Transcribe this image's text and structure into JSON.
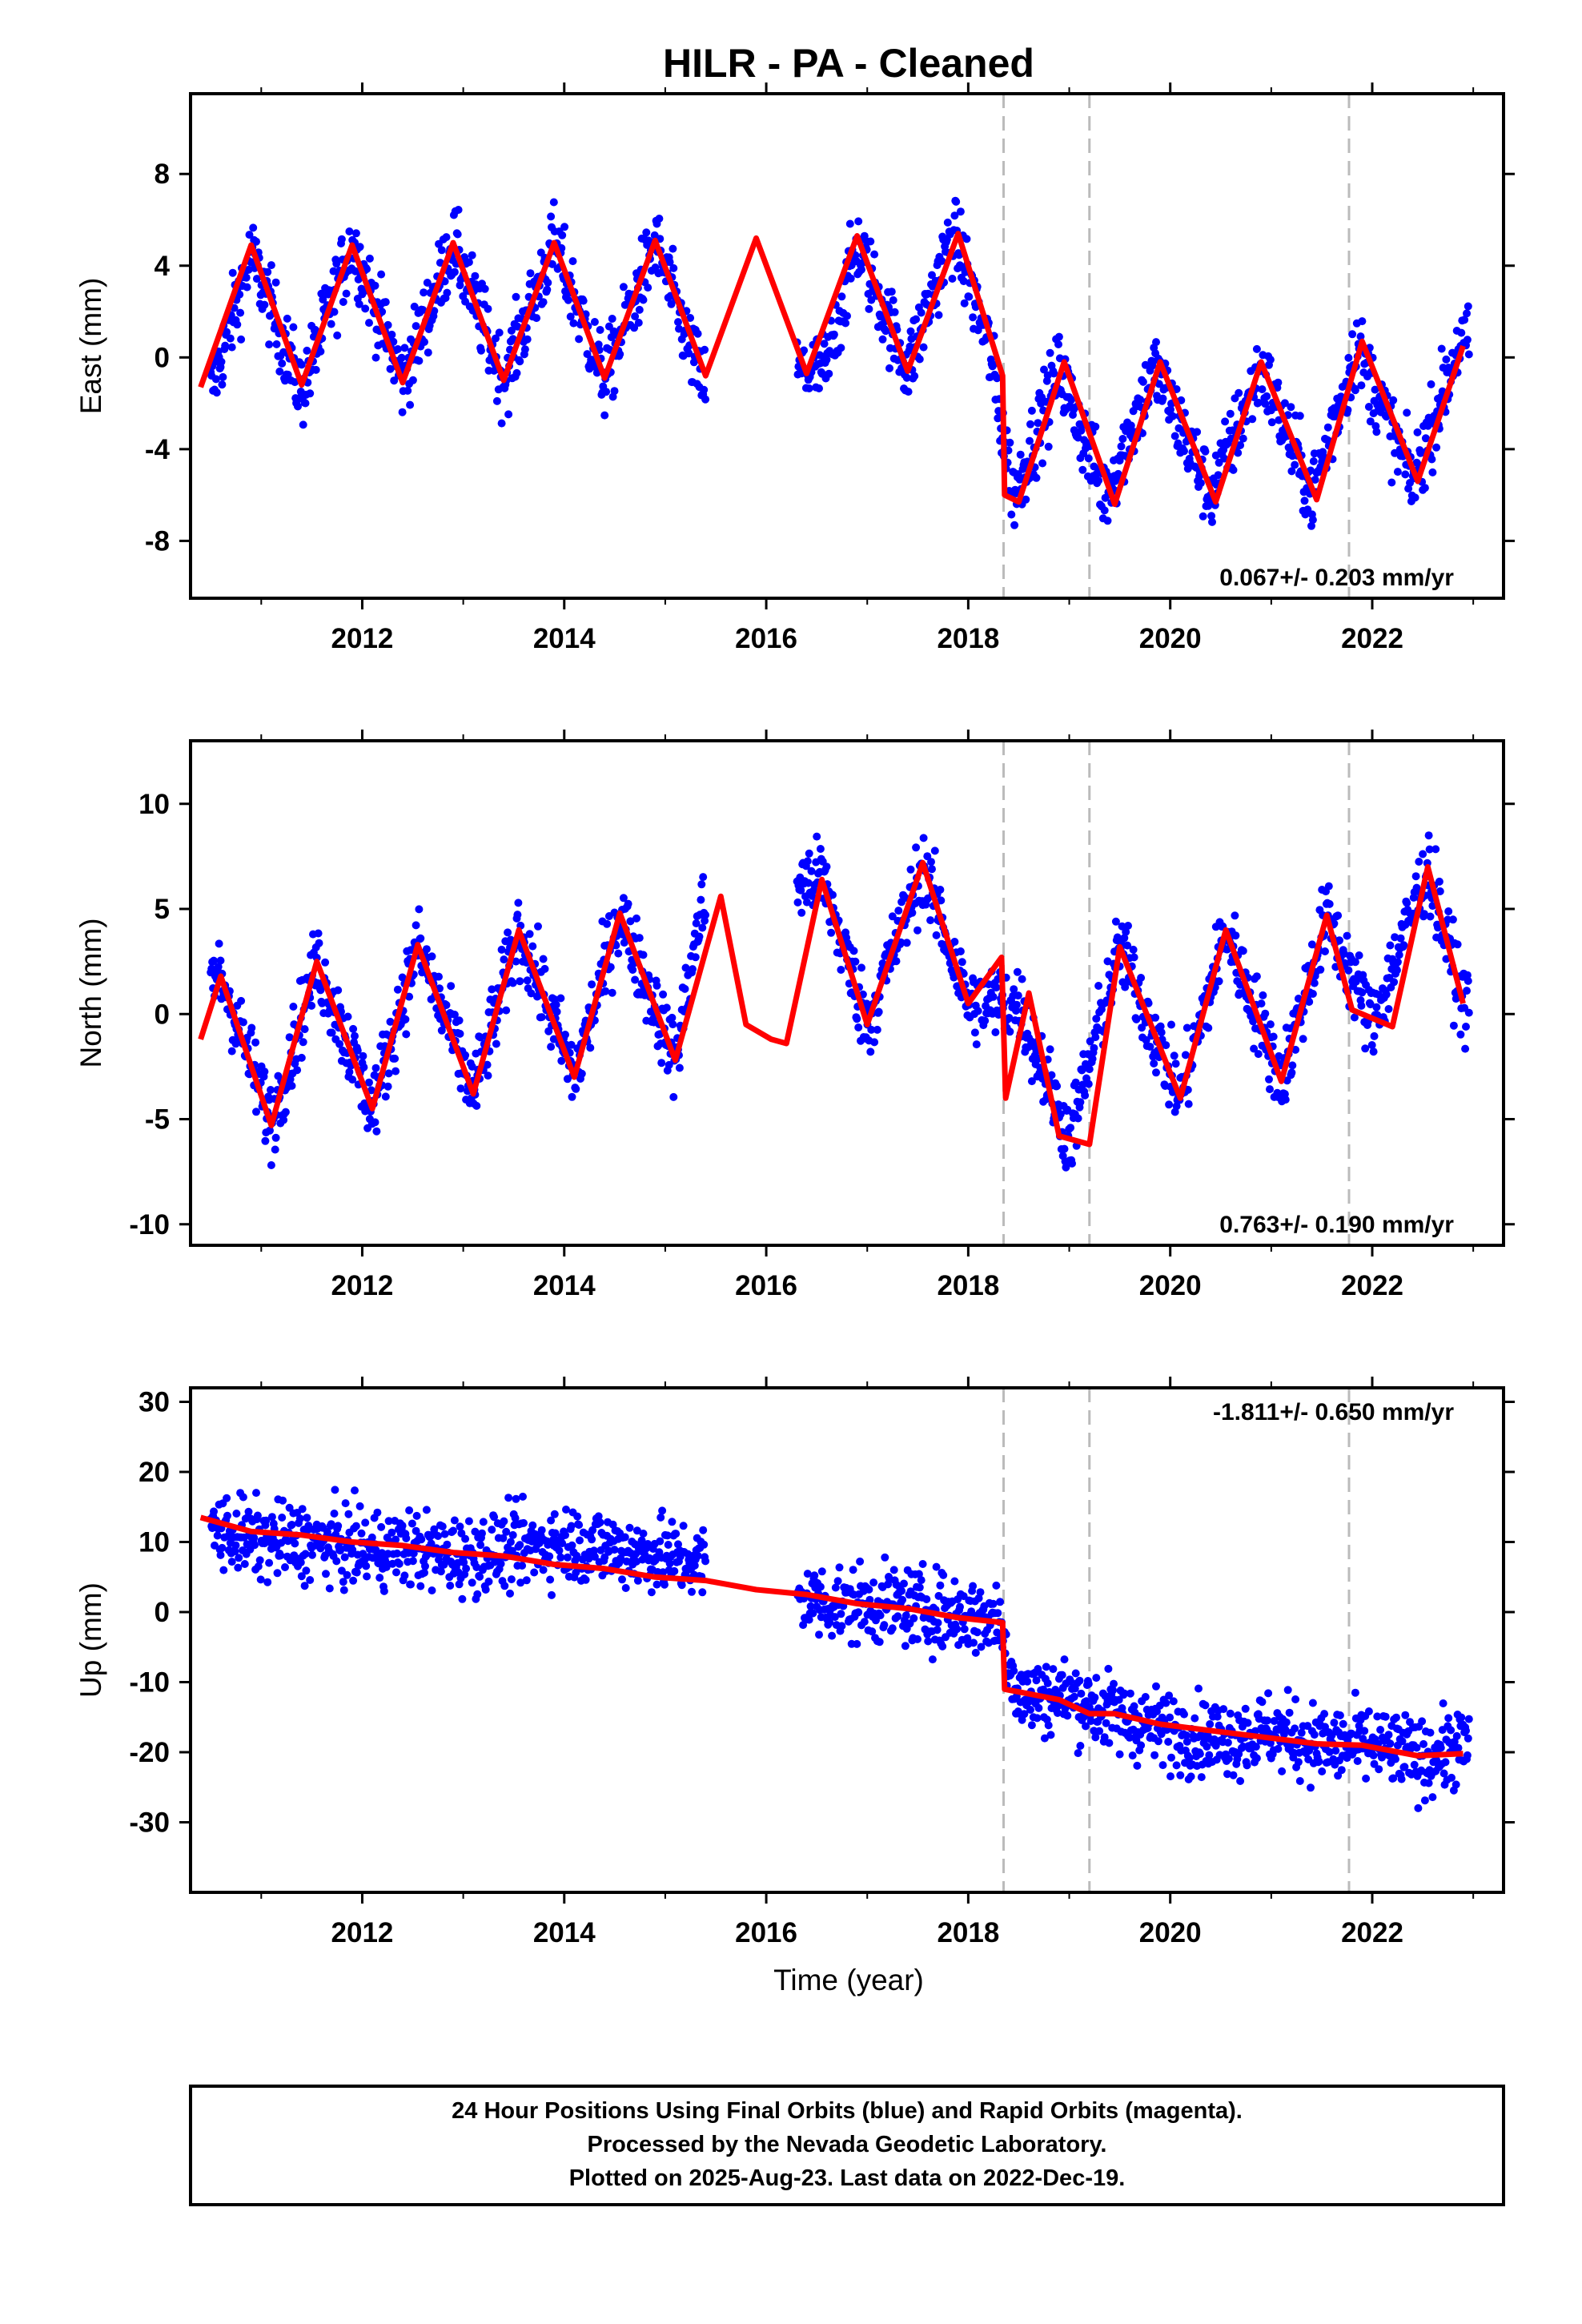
{
  "title": "HILR  - PA - Cleaned",
  "x_axis_label": "Time (year)",
  "colors": {
    "data": "#0000ff",
    "model": "#ff0000",
    "event": "#bbbbbb",
    "frame": "#000000"
  },
  "chart_data": [
    {
      "type": "scatter",
      "panel": "east",
      "ylabel": "East (mm)",
      "xlim": [
        2010.3,
        2023.3
      ],
      "ylim": [
        -10.5,
        11.5
      ],
      "x_ticks": [
        "2012",
        "2014",
        "2016",
        "2018",
        "2020",
        "2022"
      ],
      "y_ticks": [
        "-8",
        "-4",
        "0",
        "4",
        "8"
      ],
      "grid": false,
      "rate_label": "0.067+/- 0.203 mm/yr",
      "rate_position": "bottom-right",
      "event_lines": [
        2018.35,
        2019.2,
        2021.77
      ],
      "data_gap": [
        2015.4,
        2016.3
      ],
      "series": [
        {
          "name": "24 Hour Positions (Final Orbits)",
          "kind": "points",
          "style": "blue dots",
          "x": [
            2010.5,
            2010.9,
            2011.4,
            2011.9,
            2012.4,
            2012.9,
            2013.4,
            2013.9,
            2014.4,
            2014.9,
            2015.35,
            2016.6,
            2016.9,
            2017.4,
            2017.85,
            2018.2,
            2018.45,
            2018.9,
            2019.35,
            2019.85,
            2020.4,
            2020.9,
            2021.4,
            2021.85,
            2022.4,
            2022.85
          ],
          "y": [
            -1.5,
            4.5,
            -1.5,
            5.0,
            -1.0,
            5.0,
            -1.0,
            5.0,
            -1.0,
            5.0,
            -1.0,
            -0.5,
            5.0,
            -0.5,
            5.5,
            0.5,
            -6.0,
            -0.5,
            -6.0,
            -0.5,
            -6.0,
            -0.5,
            -6.0,
            0.5,
            -5.5,
            0.5
          ]
        },
        {
          "name": "Model fit",
          "kind": "line",
          "style": "red line",
          "x": [
            2010.4,
            2010.9,
            2011.4,
            2011.9,
            2012.4,
            2012.9,
            2013.4,
            2013.9,
            2014.4,
            2014.9,
            2015.4,
            2015.9,
            2016.4,
            2016.9,
            2017.4,
            2017.9,
            2018.34,
            2018.36,
            2018.5,
            2018.95,
            2019.45,
            2019.9,
            2020.45,
            2020.9,
            2021.45,
            2021.9,
            2022.45,
            2022.9
          ],
          "y": [
            -1.3,
            4.9,
            -1.2,
            4.9,
            -1.1,
            5.0,
            -1.0,
            5.0,
            -0.9,
            5.1,
            -0.8,
            5.2,
            -0.7,
            5.3,
            -0.6,
            5.4,
            -0.8,
            -6.0,
            -6.3,
            -0.2,
            -6.4,
            -0.2,
            -6.3,
            -0.2,
            -6.2,
            0.7,
            -5.4,
            0.5
          ]
        }
      ]
    },
    {
      "type": "scatter",
      "panel": "north",
      "ylabel": "North (mm)",
      "xlim": [
        2010.3,
        2023.3
      ],
      "ylim": [
        -11,
        13
      ],
      "x_ticks": [
        "2012",
        "2014",
        "2016",
        "2018",
        "2020",
        "2022"
      ],
      "y_ticks": [
        "-10",
        "-5",
        "0",
        "5",
        "10"
      ],
      "grid": false,
      "rate_label": "0.763+/- 0.190 mm/yr",
      "rate_position": "bottom-right",
      "event_lines": [
        2018.35,
        2019.2,
        2021.77
      ],
      "data_gap": [
        2015.4,
        2016.3
      ],
      "series": [
        {
          "name": "24 Hour Positions (Final Orbits)",
          "kind": "points",
          "style": "blue dots",
          "x": [
            2010.6,
            2011.1,
            2011.55,
            2012.1,
            2012.55,
            2013.1,
            2013.55,
            2014.1,
            2014.55,
            2015.1,
            2015.35,
            2016.55,
            2017.0,
            2017.55,
            2018.0,
            2018.5,
            2019.0,
            2019.5,
            2020.1,
            2020.55,
            2021.1,
            2021.55,
            2022.0,
            2022.55,
            2022.9
          ],
          "y": [
            1.8,
            -5.2,
            2.5,
            -4.5,
            3.3,
            -3.8,
            4.0,
            -3.0,
            4.8,
            -2.2,
            4.8,
            6.5,
            -0.5,
            7.0,
            0.5,
            0.5,
            -6.0,
            3.2,
            -4.0,
            4.0,
            -3.2,
            4.7,
            -0.5,
            7.0,
            0.5
          ]
        },
        {
          "name": "Model fit",
          "kind": "line",
          "style": "red line",
          "x": [
            2010.4,
            2010.6,
            2011.1,
            2011.55,
            2012.1,
            2012.55,
            2013.1,
            2013.55,
            2014.1,
            2014.55,
            2015.1,
            2015.55,
            2015.8,
            2016.05,
            2016.2,
            2016.55,
            2017.0,
            2017.55,
            2018.0,
            2018.33,
            2018.37,
            2018.6,
            2018.9,
            2019.2,
            2019.5,
            2020.1,
            2020.55,
            2021.1,
            2021.55,
            2021.8,
            2022.2,
            2022.55,
            2022.9
          ],
          "y": [
            -1.2,
            1.8,
            -5.3,
            2.5,
            -4.5,
            3.3,
            -3.8,
            4.0,
            -3.0,
            4.8,
            -2.2,
            5.6,
            -0.5,
            -1.2,
            -1.4,
            6.4,
            -0.5,
            7.2,
            0.5,
            2.7,
            -4.0,
            1.0,
            -5.8,
            -6.2,
            3.2,
            -4.0,
            4.0,
            -3.2,
            4.7,
            0.2,
            -0.6,
            7.0,
            0.5
          ]
        }
      ]
    },
    {
      "type": "scatter",
      "panel": "up",
      "ylabel": "Up (mm)",
      "xlim": [
        2010.3,
        2023.3
      ],
      "ylim": [
        -40,
        32
      ],
      "x_ticks": [
        "2012",
        "2014",
        "2016",
        "2018",
        "2020",
        "2022"
      ],
      "y_ticks": [
        "-30",
        "-20",
        "-10",
        "0",
        "10",
        "20",
        "30"
      ],
      "grid": false,
      "rate_label": "-1.811+/- 0.650 mm/yr",
      "rate_position": "top-right",
      "event_lines": [
        2018.35,
        2019.2,
        2021.77
      ],
      "data_gap": [
        2015.4,
        2016.3
      ],
      "series": [
        {
          "name": "24 Hour Positions (Final Orbits)",
          "kind": "points",
          "style": "blue dots",
          "x": [
            2010.5,
            2011.0,
            2011.5,
            2012.0,
            2012.5,
            2013.0,
            2013.5,
            2014.0,
            2014.5,
            2015.0,
            2015.35,
            2016.3,
            2016.8,
            2017.3,
            2017.8,
            2018.3,
            2018.5,
            2019.0,
            2019.5,
            2020.0,
            2020.5,
            2021.0,
            2021.5,
            2022.0,
            2022.5,
            2022.9
          ],
          "y": [
            12,
            10,
            10,
            9,
            9,
            8,
            9,
            10,
            9,
            8,
            7,
            2,
            1,
            1,
            0,
            -1,
            -12,
            -12,
            -15,
            -17,
            -18,
            -17,
            -19,
            -19,
            -21,
            -19
          ]
        },
        {
          "name": "Model fit",
          "kind": "line",
          "style": "red line",
          "x": [
            2010.4,
            2010.9,
            2011.4,
            2011.9,
            2012.4,
            2012.9,
            2013.4,
            2013.9,
            2014.4,
            2014.9,
            2015.4,
            2015.9,
            2016.4,
            2016.9,
            2017.4,
            2017.9,
            2018.34,
            2018.36,
            2018.9,
            2019.2,
            2019.45,
            2019.9,
            2020.45,
            2020.9,
            2021.45,
            2021.9,
            2022.45,
            2022.9
          ],
          "y": [
            13.5,
            11.5,
            11.0,
            10.0,
            9.5,
            8.5,
            8.0,
            6.8,
            6.2,
            5.0,
            4.5,
            3.2,
            2.5,
            1.2,
            0.5,
            -0.8,
            -1.5,
            -11.0,
            -12.5,
            -14.5,
            -14.5,
            -16.0,
            -17.0,
            -17.8,
            -18.8,
            -19.0,
            -20.5,
            -20.2
          ]
        }
      ]
    }
  ],
  "footer": {
    "line1": "24 Hour Positions Using Final Orbits (blue) and Rapid Orbits (magenta).",
    "line2": "Processed by the Nevada Geodetic Laboratory.",
    "line3": "Plotted on 2025-Aug-23. Last data on 2022-Dec-19."
  }
}
